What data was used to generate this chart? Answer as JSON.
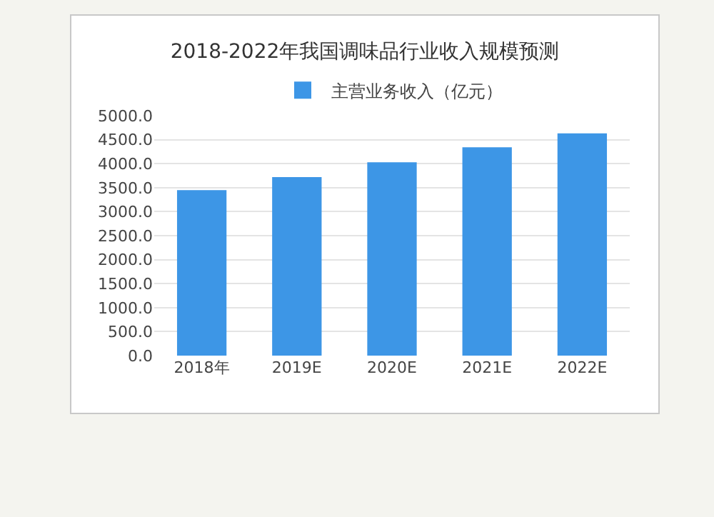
{
  "chart_data": {
    "type": "bar",
    "title": "2018-2022年我国调味品行业收入规模预测",
    "categories": [
      "2018年",
      "2019E",
      "2020E",
      "2021E",
      "2022E"
    ],
    "series": [
      {
        "name": "主营业务收入（亿元）",
        "color": "#3d96e6",
        "values": [
          3450,
          3720,
          4030,
          4340,
          4630
        ]
      }
    ],
    "ylim": [
      0,
      5000
    ],
    "yticks": [
      {
        "value": 0,
        "label": "0.0"
      },
      {
        "value": 500,
        "label": "500.0"
      },
      {
        "value": 1000,
        "label": "1000.0"
      },
      {
        "value": 1500,
        "label": "1500.0"
      },
      {
        "value": 2000,
        "label": "2000.0"
      },
      {
        "value": 2500,
        "label": "2500.0"
      },
      {
        "value": 3000,
        "label": "3000.0"
      },
      {
        "value": 3500,
        "label": "3500.0"
      },
      {
        "value": 4000,
        "label": "4000.0"
      },
      {
        "value": 4500,
        "label": "4500.0"
      },
      {
        "value": 5000,
        "label": "5000.0"
      }
    ],
    "grid": "y",
    "legend": "top"
  }
}
